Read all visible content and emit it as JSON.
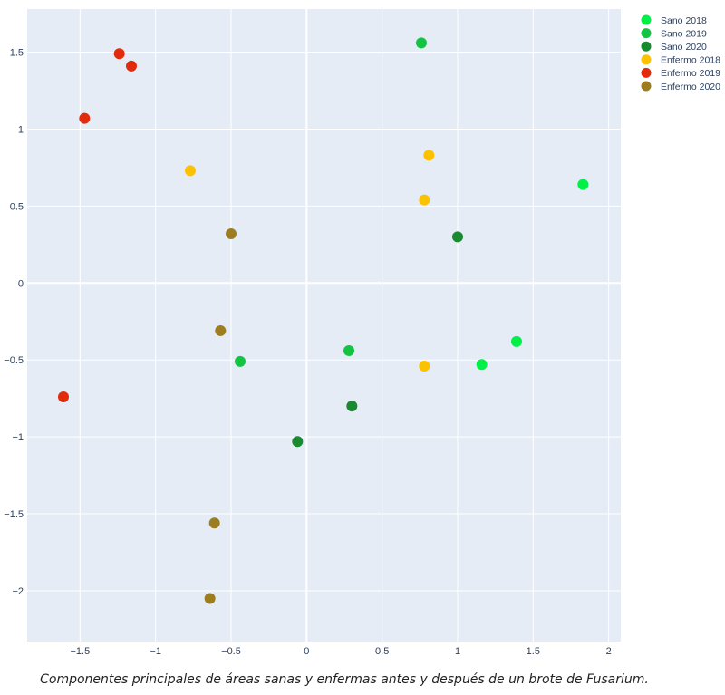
{
  "chart_data": {
    "type": "scatter",
    "title": "",
    "xlabel": "",
    "ylabel": "",
    "xlim": [
      -1.85,
      2.08
    ],
    "ylim": [
      -2.33,
      1.78
    ],
    "grid": true,
    "legend_position": "right",
    "x_ticks": [
      -1.5,
      -1,
      -0.5,
      0,
      0.5,
      1,
      1.5,
      2
    ],
    "x_tick_labels": [
      "−1.5",
      "−1",
      "−0.5",
      "0",
      "0.5",
      "1",
      "1.5",
      "2"
    ],
    "y_ticks": [
      1.5,
      1,
      0.5,
      0,
      -0.5,
      -1,
      -1.5,
      -2
    ],
    "y_tick_labels": [
      "1.5",
      "1",
      "0.5",
      "0",
      "−0.5",
      "−1",
      "−1.5",
      "−2"
    ],
    "series": [
      {
        "name": "Sano 2018",
        "color": "#00f047",
        "points": [
          [
            1.83,
            0.64
          ],
          [
            1.39,
            -0.38
          ],
          [
            1.16,
            -0.53
          ]
        ]
      },
      {
        "name": "Sano 2019",
        "color": "#13c443",
        "points": [
          [
            0.76,
            1.56
          ],
          [
            0.28,
            -0.44
          ],
          [
            -0.44,
            -0.51
          ]
        ]
      },
      {
        "name": "Sano 2020",
        "color": "#1a8a30",
        "points": [
          [
            1.0,
            0.3
          ],
          [
            0.3,
            -0.8
          ],
          [
            -0.06,
            -1.03
          ]
        ]
      },
      {
        "name": "Enfermo 2018",
        "color": "#fcc200",
        "points": [
          [
            0.81,
            0.83
          ],
          [
            0.78,
            0.54
          ],
          [
            0.78,
            -0.54
          ],
          [
            -0.77,
            0.73
          ]
        ]
      },
      {
        "name": "Enfermo 2019",
        "color": "#e22a0c",
        "points": [
          [
            -1.24,
            1.49
          ],
          [
            -1.16,
            1.41
          ],
          [
            -1.47,
            1.07
          ],
          [
            -1.61,
            -0.74
          ]
        ]
      },
      {
        "name": "Enfermo 2020",
        "color": "#9c7e1e",
        "points": [
          [
            -0.5,
            0.32
          ],
          [
            -0.57,
            -0.31
          ],
          [
            -0.61,
            -1.56
          ],
          [
            -0.64,
            -2.05
          ]
        ]
      }
    ]
  },
  "caption": "Componentes principales de áreas sanas y enfermas antes y después de un brote de Fusarium."
}
